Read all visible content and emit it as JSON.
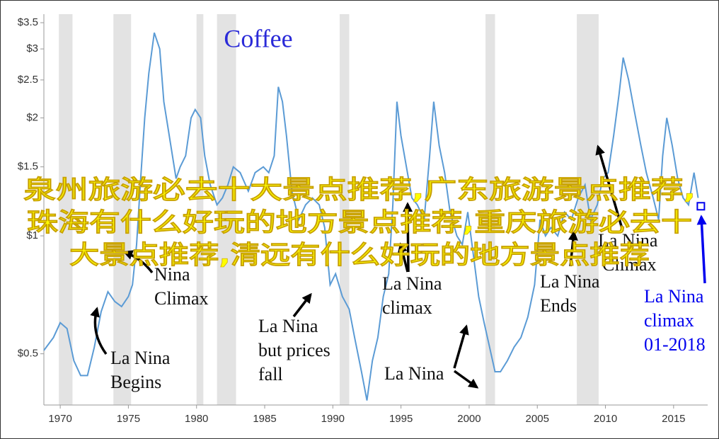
{
  "chart_data": {
    "type": "line",
    "title": "Coffee",
    "scale": "log",
    "color": "#5b9bd5",
    "xlim": [
      1968.8,
      2017.5
    ],
    "ylim": [
      0.37,
      3.68
    ],
    "xticks": [
      1970,
      1975,
      1980,
      1985,
      1990,
      1995,
      2000,
      2005,
      2010,
      2015
    ],
    "yticks": [
      {
        "value": 0.5,
        "label": "$0.5"
      },
      {
        "value": 1,
        "label": "$1"
      },
      {
        "value": 1.5,
        "label": "$1.5"
      },
      {
        "value": 2,
        "label": "$2"
      },
      {
        "value": 2.5,
        "label": "$2.5"
      },
      {
        "value": 3,
        "label": "$3"
      },
      {
        "value": 3.5,
        "label": "$3.5"
      }
    ],
    "grid": false,
    "recession_color": "#e3e3e3",
    "recessions": [
      [
        1969.9,
        1970.9
      ],
      [
        1973.9,
        1975.2
      ],
      [
        1980.0,
        1980.5
      ],
      [
        1981.5,
        1982.9
      ],
      [
        1990.5,
        1991.2
      ],
      [
        2001.2,
        2001.9
      ],
      [
        2007.9,
        2009.5
      ]
    ],
    "x": [
      1968.8,
      1969.5,
      1970.0,
      1970.5,
      1971.0,
      1971.5,
      1972.0,
      1972.5,
      1973.0,
      1973.5,
      1974.0,
      1974.5,
      1975.0,
      1975.3,
      1975.6,
      1975.9,
      1976.2,
      1976.5,
      1976.9,
      1977.3,
      1977.6,
      1978.0,
      1978.5,
      1978.8,
      1979.2,
      1979.6,
      1979.9,
      1980.3,
      1980.6,
      1981.0,
      1981.5,
      1981.9,
      1982.3,
      1982.7,
      1983.2,
      1983.8,
      1984.3,
      1984.9,
      1985.3,
      1985.7,
      1986.0,
      1986.3,
      1986.6,
      1987.0,
      1987.5,
      1988.0,
      1988.5,
      1989.0,
      1989.4,
      1989.8,
      1990.2,
      1990.7,
      1991.2,
      1991.6,
      1992.1,
      1992.5,
      1992.9,
      1993.3,
      1993.7,
      1994.1,
      1994.4,
      1994.7,
      1995.0,
      1995.4,
      1995.8,
      1996.2,
      1996.7,
      1997.1,
      1997.4,
      1997.8,
      1998.2,
      1998.6,
      1999.1,
      1999.5,
      1999.9,
      2000.3,
      2000.7,
      2001.1,
      2001.5,
      2001.9,
      2002.3,
      2002.8,
      2003.3,
      2003.8,
      2004.3,
      2004.8,
      2005.2,
      2005.6,
      2006.0,
      2006.5,
      2007.0,
      2007.5,
      2008.0,
      2008.5,
      2008.9,
      2009.4,
      2009.8,
      2010.2,
      2010.6,
      2011.0,
      2011.3,
      2011.7,
      2012.1,
      2012.6,
      2013.0,
      2013.5,
      2013.9,
      2014.2,
      2014.5,
      2014.9,
      2015.3,
      2015.7,
      2016.1,
      2016.5,
      2016.8
    ],
    "values": [
      0.51,
      0.55,
      0.6,
      0.58,
      0.48,
      0.44,
      0.44,
      0.52,
      0.64,
      0.72,
      0.68,
      0.66,
      0.7,
      0.75,
      0.95,
      1.4,
      2.0,
      2.6,
      3.3,
      3.0,
      2.2,
      1.8,
      1.4,
      1.5,
      1.6,
      2.0,
      2.1,
      2.0,
      1.6,
      1.35,
      1.2,
      1.25,
      1.35,
      1.5,
      1.45,
      1.3,
      1.45,
      1.5,
      1.45,
      1.6,
      2.4,
      2.2,
      1.8,
      1.3,
      1.1,
      1.2,
      1.25,
      1.2,
      1.05,
      0.75,
      0.8,
      0.7,
      0.65,
      0.55,
      0.45,
      0.38,
      0.48,
      0.55,
      0.7,
      0.8,
      1.2,
      2.2,
      1.8,
      1.5,
      1.25,
      1.2,
      1.1,
      1.6,
      2.2,
      1.7,
      1.45,
      1.15,
      1.0,
      0.95,
      1.15,
      0.9,
      0.7,
      0.6,
      0.52,
      0.45,
      0.45,
      0.48,
      0.52,
      0.55,
      0.62,
      0.75,
      1.1,
      1.0,
      1.05,
      1.0,
      1.15,
      1.1,
      1.25,
      1.35,
      1.1,
      1.2,
      1.4,
      1.45,
      1.8,
      2.3,
      2.85,
      2.5,
      2.1,
      1.7,
      1.45,
      1.25,
      1.1,
      1.6,
      2.0,
      1.7,
      1.4,
      1.25,
      1.2,
      1.45,
      1.25
    ],
    "highlight": {
      "x": 2017.0,
      "value": 1.19,
      "color": "#0000ee"
    },
    "annotations": [
      {
        "lines": [
          "La Nina",
          "Begins"
        ]
      },
      {
        "lines": [
          "Nina",
          "Climax"
        ]
      },
      {
        "lines": [
          "La Nina",
          "but prices",
          "fall"
        ]
      },
      {
        "lines": [
          "La Nina",
          "climax"
        ]
      },
      {
        "lines": [
          "La Nina"
        ]
      },
      {
        "lines": [
          "La Nina",
          "Ends"
        ]
      },
      {
        "lines": [
          "La Nina",
          "Climax"
        ]
      },
      {
        "lines": [
          "La Nina",
          "climax",
          "01-2018"
        ]
      }
    ]
  },
  "overlay_text": [
    "泉州旅游必去十大景点推荐,广东旅游景点推荐,",
    "珠海有什么好玩的地方景点推荐,重庆旅游必去十",
    "大景点推荐,清远有什么好玩的地方景点推荐"
  ]
}
